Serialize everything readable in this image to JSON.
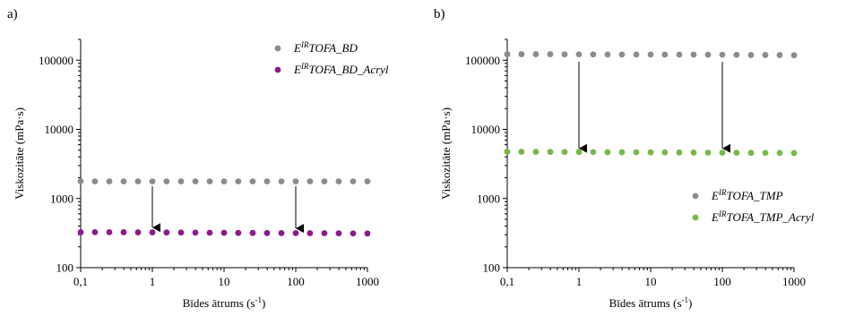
{
  "chart_data": [
    {
      "type": "scatter",
      "panel_label": "a)",
      "title": "",
      "xlabel": "Bīdes ātrums (s",
      "xlabel_sup": "-1",
      "xlabel_end": ")",
      "ylabel": "Viskozitāte (mPa·s)",
      "xscale": "log",
      "yscale": "log",
      "xlim": [
        0.1,
        1000
      ],
      "ylim": [
        100,
        200000
      ],
      "xticks": [
        0.1,
        1,
        10,
        100,
        1000
      ],
      "xtick_labels": [
        "0,1",
        "1",
        "10",
        "100",
        "1000"
      ],
      "yticks": [
        100,
        1000,
        10000,
        100000
      ],
      "ytick_labels": [
        "100",
        "1000",
        "10000",
        "100000"
      ],
      "legend_position": "top-right",
      "series": [
        {
          "name_base": "E",
          "name_sup": "IR",
          "name": "TOFA_BD",
          "color": "#8c8c8c",
          "x": [
            0.1,
            0.158,
            0.251,
            0.398,
            0.631,
            1,
            1.58,
            2.51,
            3.98,
            6.31,
            10,
            15.8,
            25.1,
            39.8,
            63.1,
            100,
            158,
            251,
            398,
            631,
            1000
          ],
          "y": [
            1780,
            1770,
            1770,
            1770,
            1770,
            1770,
            1770,
            1770,
            1770,
            1770,
            1770,
            1770,
            1770,
            1770,
            1770,
            1770,
            1770,
            1770,
            1770,
            1770,
            1770
          ]
        },
        {
          "name_base": "E",
          "name_sup": "IR",
          "name": "TOFA_BD_Acryl",
          "color": "#8b1a8b",
          "x": [
            0.1,
            0.158,
            0.251,
            0.398,
            0.631,
            1,
            1.58,
            2.51,
            3.98,
            6.31,
            10,
            15.8,
            25.1,
            39.8,
            63.1,
            100,
            158,
            251,
            398,
            631,
            1000
          ],
          "y": [
            325,
            326,
            326,
            325,
            324,
            324,
            323,
            322,
            321,
            320,
            319,
            318,
            318,
            317,
            316,
            316,
            315,
            315,
            314,
            313,
            312
          ]
        }
      ],
      "arrows": [
        {
          "x": 1,
          "y_from": 1500,
          "y_to": 380
        },
        {
          "x": 100,
          "y_from": 1500,
          "y_to": 370
        }
      ]
    },
    {
      "type": "scatter",
      "panel_label": "b)",
      "title": "",
      "xlabel": "Bīdes ātrums (s",
      "xlabel_sup": "-1",
      "xlabel_end": ")",
      "ylabel": "Viskozitāte (mPa·s)",
      "xscale": "log",
      "yscale": "log",
      "xlim": [
        0.1,
        1000
      ],
      "ylim": [
        100,
        200000
      ],
      "xticks": [
        0.1,
        1,
        10,
        100,
        1000
      ],
      "xtick_labels": [
        "0,1",
        "1",
        "10",
        "100",
        "1000"
      ],
      "yticks": [
        100,
        1000,
        10000,
        100000
      ],
      "ytick_labels": [
        "100",
        "1000",
        "10000",
        "100000"
      ],
      "legend_position": "bottom-right",
      "series": [
        {
          "name_base": "E",
          "name_sup": "IR",
          "name": "TOFA_TMP",
          "color": "#8c8c8c",
          "x": [
            0.1,
            0.158,
            0.251,
            0.398,
            0.631,
            1,
            1.58,
            2.51,
            3.98,
            6.31,
            10,
            15.8,
            25.1,
            39.8,
            63.1,
            100,
            158,
            251,
            398,
            631,
            1000
          ],
          "y": [
            122000,
            122000,
            122000,
            122000,
            121500,
            121500,
            121500,
            121000,
            121000,
            121000,
            121000,
            120500,
            120500,
            120500,
            120000,
            120000,
            119500,
            119000,
            119000,
            118500,
            118000
          ]
        },
        {
          "name_base": "E",
          "name_sup": "IR",
          "name": "TOFA_TMP_Acryl",
          "color": "#78b84a",
          "x": [
            0.1,
            0.158,
            0.251,
            0.398,
            0.631,
            1,
            1.58,
            2.51,
            3.98,
            6.31,
            10,
            15.8,
            25.1,
            39.8,
            63.1,
            100,
            158,
            251,
            398,
            631,
            1000
          ],
          "y": [
            4750,
            4740,
            4730,
            4720,
            4710,
            4700,
            4690,
            4680,
            4670,
            4660,
            4650,
            4640,
            4630,
            4620,
            4610,
            4600,
            4590,
            4580,
            4570,
            4560,
            4550
          ]
        }
      ],
      "arrows": [
        {
          "x": 1,
          "y_from": 95000,
          "y_to": 5300
        },
        {
          "x": 100,
          "y_from": 95000,
          "y_to": 5300
        }
      ]
    }
  ]
}
